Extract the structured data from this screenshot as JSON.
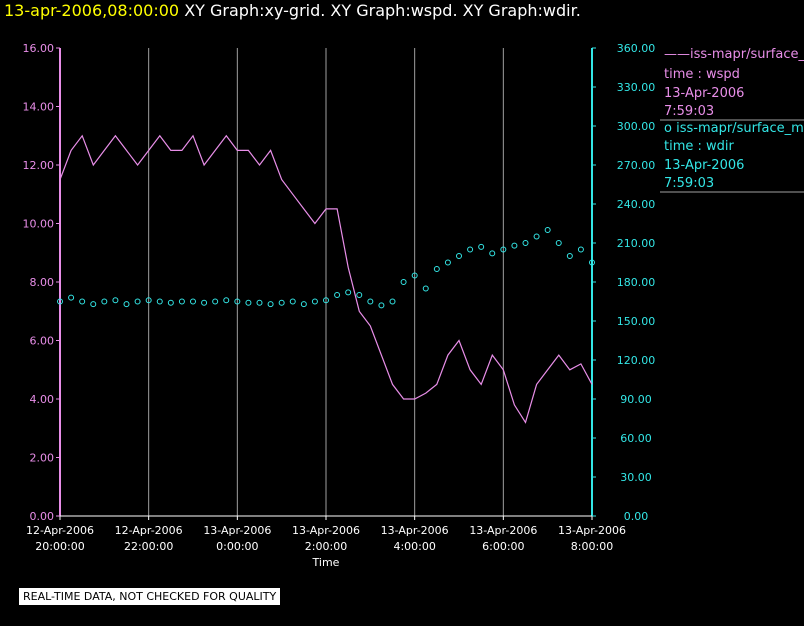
{
  "header": {
    "date_label": "13-apr-2006,08:00:00",
    "graphs": "XY Graph:xy-grid.  XY Graph:wspd.  XY Graph:wdir."
  },
  "legend": [
    {
      "symbol": "——",
      "name": "iss-mapr/surface_m",
      "var": "time : wspd",
      "date": "13-Apr-2006",
      "time": "7:59:03",
      "color": "#e88ee8"
    },
    {
      "symbol": "o",
      "name": "iss-mapr/surface_m",
      "var": "time : wdir",
      "date": "13-Apr-2006",
      "time": "7:59:03",
      "color": "#33e6e6"
    }
  ],
  "footer_note": "REAL-TIME DATA, NOT CHECKED FOR QUALITY",
  "colors": {
    "background": "#000000",
    "wspd": "#e88ee8",
    "wdir": "#33e6e6",
    "title_date": "#ffff00",
    "grid": "#a0a0a0"
  },
  "chart_data": {
    "type": "line",
    "xlabel": "Time",
    "x_ticks": [
      {
        "line1": "12-Apr-2006",
        "line2": "20:00:00",
        "hours": 0
      },
      {
        "line1": "12-Apr-2006",
        "line2": "22:00:00",
        "hours": 2
      },
      {
        "line1": "13-Apr-2006",
        "line2": "0:00:00",
        "hours": 4
      },
      {
        "line1": "13-Apr-2006",
        "line2": "2:00:00",
        "hours": 6
      },
      {
        "line1": "13-Apr-2006",
        "line2": "4:00:00",
        "hours": 8
      },
      {
        "line1": "13-Apr-2006",
        "line2": "6:00:00",
        "hours": 10
      },
      {
        "line1": "13-Apr-2006",
        "line2": "8:00:00",
        "hours": 12
      }
    ],
    "xlim": [
      "12-Apr-2006 20:00:00",
      "13-Apr-2006 8:00:00"
    ],
    "y_left": {
      "ylim": [
        0,
        16
      ],
      "ticks": [
        "0.00",
        "2.00",
        "4.00",
        "6.00",
        "8.00",
        "10.00",
        "12.00",
        "14.00",
        "16.00"
      ],
      "color": "#e88ee8"
    },
    "y_right": {
      "ylim": [
        0,
        360
      ],
      "ticks": [
        "0.00",
        "30.00",
        "60.00",
        "90.00",
        "120.00",
        "150.00",
        "180.00",
        "210.00",
        "240.00",
        "270.00",
        "300.00",
        "330.00",
        "360.00"
      ],
      "color": "#33e6e6"
    },
    "grid": "vertical",
    "legend_position": "right",
    "series": [
      {
        "axis": "left",
        "style": "line",
        "color": "#e88ee8",
        "x": [
          0,
          0.25,
          0.5,
          0.75,
          1,
          1.25,
          1.5,
          1.75,
          2,
          2.25,
          2.5,
          2.75,
          3,
          3.25,
          3.5,
          3.75,
          4,
          4.25,
          4.5,
          4.75,
          5,
          5.25,
          5.5,
          5.75,
          6,
          6.25,
          6.5,
          6.75,
          7,
          7.25,
          7.5,
          7.75,
          8,
          8.25,
          8.5,
          8.75,
          9,
          9.25,
          9.5,
          9.75,
          10,
          10.25,
          10.5,
          10.75,
          11,
          11.25,
          11.5,
          11.75,
          12
        ],
        "y": [
          11.5,
          12.5,
          13.0,
          12.0,
          12.5,
          13.0,
          12.5,
          12.0,
          12.5,
          13.0,
          12.5,
          12.5,
          13.0,
          12.0,
          12.5,
          13.0,
          12.5,
          12.5,
          12.0,
          12.5,
          11.5,
          11.0,
          10.5,
          10.0,
          10.5,
          10.5,
          8.5,
          7.0,
          6.5,
          5.5,
          4.5,
          4.0,
          4.0,
          4.2,
          4.5,
          5.5,
          6.0,
          5.0,
          4.5,
          5.5,
          5.0,
          3.8,
          3.2,
          4.5,
          5.0,
          5.5,
          5.0,
          5.2,
          4.5
        ]
      },
      {
        "axis": "right",
        "style": "markers",
        "color": "#33e6e6",
        "x": [
          0,
          0.25,
          0.5,
          0.75,
          1,
          1.25,
          1.5,
          1.75,
          2,
          2.25,
          2.5,
          2.75,
          3,
          3.25,
          3.5,
          3.75,
          4,
          4.25,
          4.5,
          4.75,
          5,
          5.25,
          5.5,
          5.75,
          6,
          6.25,
          6.5,
          6.75,
          7,
          7.25,
          7.5,
          7.75,
          8,
          8.25,
          8.5,
          8.75,
          9,
          9.25,
          9.5,
          9.75,
          10,
          10.25,
          10.5,
          10.75,
          11,
          11.25,
          11.5,
          11.75,
          12
        ],
        "y": [
          165,
          168,
          165,
          163,
          165,
          166,
          163,
          165,
          166,
          165,
          164,
          165,
          165,
          164,
          165,
          166,
          165,
          164,
          164,
          163,
          164,
          165,
          163,
          165,
          166,
          170,
          172,
          170,
          165,
          162,
          165,
          180,
          185,
          175,
          190,
          195,
          200,
          205,
          207,
          202,
          205,
          208,
          210,
          215,
          220,
          210,
          200,
          205,
          195
        ]
      }
    ]
  }
}
